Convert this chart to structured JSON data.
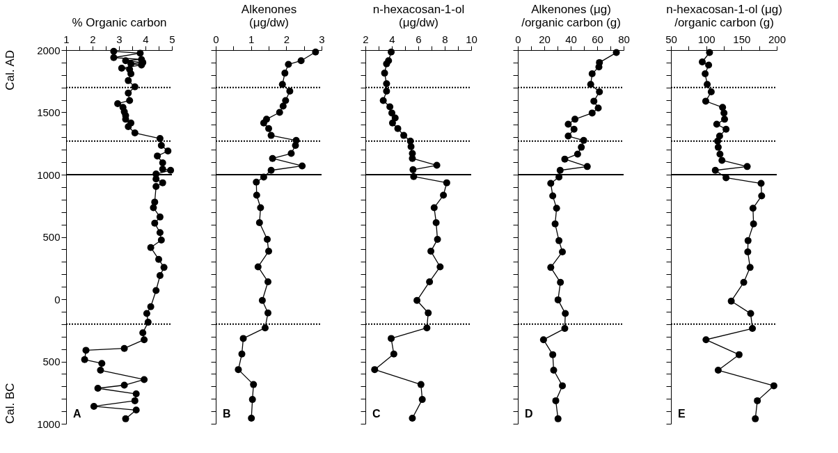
{
  "chart_data": [
    {
      "type": "line",
      "xlabel": "% Organic carbon",
      "ylabel": "Cal. AD",
      "annotations": [
        "A",
        "Cal. BC"
      ],
      "marker": "circle",
      "line_style": "solid",
      "series": [
        {
          "color": "#000000",
          "x": [
            2.8,
            3.8,
            2.8,
            3.85,
            3.25,
            3.9,
            3.45,
            3.85,
            3.1,
            3.4,
            3.45,
            3.35,
            3.6,
            3.35,
            3.4,
            2.95,
            3.15,
            3.2,
            3.25,
            3.25,
            3.45,
            3.35,
            3.6,
            4.55,
            4.6,
            4.85,
            4.45,
            4.65,
            4.65,
            4.95,
            4.4,
            4.4,
            4.65,
            4.4,
            4.35,
            4.3,
            4.55,
            4.35,
            4.55,
            4.6,
            4.2,
            4.5,
            4.7,
            4.55,
            4.4,
            4.2,
            4.05,
            4.1,
            3.9,
            3.95,
            3.2,
            1.75,
            1.7,
            2.35,
            2.3,
            3.95,
            3.2,
            2.2,
            3.65,
            3.6,
            2.05,
            3.65,
            3.25
          ],
          "values": [
            1990,
            1975,
            1940,
            1925,
            1915,
            1900,
            1890,
            1880,
            1855,
            1845,
            1810,
            1755,
            1705,
            1655,
            1595,
            1570,
            1540,
            1505,
            1475,
            1445,
            1415,
            1385,
            1335,
            1290,
            1235,
            1190,
            1150,
            1095,
            1045,
            1035,
            1005,
            965,
            935,
            905,
            780,
            735,
            660,
            610,
            535,
            475,
            415,
            320,
            255,
            190,
            70,
            -60,
            -115,
            -185,
            -270,
            -325,
            -395,
            -410,
            -485,
            -515,
            -570,
            -645,
            -690,
            -715,
            -760,
            -815,
            -860,
            -890,
            -960
          ]
        }
      ],
      "xlim": [
        1,
        5
      ],
      "xticks": [
        1,
        {
          "value": 1.5,
          "label": null
        },
        2,
        {
          "value": 2.5,
          "label": null
        },
        3,
        {
          "value": 3.5,
          "label": null
        },
        4,
        {
          "value": 4.5,
          "label": null
        },
        5
      ],
      "ylim": [
        -1000,
        2000
      ],
      "yticks": [
        {
          "value": -1000,
          "label": "1000"
        },
        {
          "value": -900,
          "label": null
        },
        {
          "value": -800,
          "label": null
        },
        {
          "value": -700,
          "label": null
        },
        {
          "value": -600,
          "label": null
        },
        {
          "value": -500,
          "label": "500"
        },
        {
          "value": -400,
          "label": null
        },
        {
          "value": -300,
          "label": null
        },
        {
          "value": -200,
          "label": null
        },
        {
          "value": -100,
          "label": null
        },
        0,
        {
          "value": 100,
          "label": null
        },
        {
          "value": 200,
          "label": null
        },
        {
          "value": 300,
          "label": null
        },
        {
          "value": 400,
          "label": null
        },
        500,
        {
          "value": 600,
          "label": null
        },
        {
          "value": 700,
          "label": null
        },
        {
          "value": 800,
          "label": null
        },
        {
          "value": 900,
          "label": null
        },
        1000,
        {
          "value": 1100,
          "label": null
        },
        {
          "value": 1200,
          "label": null
        },
        {
          "value": 1300,
          "label": null
        },
        {
          "value": 1400,
          "label": null
        },
        1500,
        {
          "value": 1600,
          "label": null
        },
        {
          "value": 1700,
          "label": null
        },
        {
          "value": 1800,
          "label": null
        },
        {
          "value": 1900,
          "label": null
        },
        2000
      ],
      "ref_lines": [
        {
          "axis": "y",
          "value": 1700,
          "line_style": "dotted"
        },
        {
          "axis": "y",
          "value": 1270,
          "line_style": "dotted"
        },
        {
          "axis": "y",
          "value": 1000,
          "line_style": "solid"
        },
        {
          "axis": "y",
          "value": -200,
          "line_style": "dotted"
        }
      ]
    },
    {
      "type": "line",
      "xlabel": "Alkenones\n(μg/dw)",
      "annotations": [
        "B"
      ],
      "marker": "circle",
      "line_style": "solid",
      "tick_labels": "x",
      "series": [
        {
          "color": "#000000",
          "x": [
            2.83,
            2.42,
            2.06,
            1.96,
            1.89,
            2.1,
            1.98,
            1.91,
            1.81,
            1.44,
            1.36,
            1.5,
            1.57,
            2.28,
            2.26,
            2.14,
            1.61,
            2.45,
            1.57,
            1.36,
            1.15,
            1.16,
            1.27,
            1.24,
            1.46,
            1.5,
            1.2,
            1.48,
            1.32,
            1.48,
            1.4,
            0.78,
            0.74,
            0.64,
            1.07,
            1.04,
            1.01
          ],
          "values": [
            1985,
            1915,
            1885,
            1815,
            1725,
            1670,
            1595,
            1550,
            1500,
            1445,
            1415,
            1370,
            1315,
            1275,
            1235,
            1170,
            1130,
            1070,
            1035,
            980,
            940,
            835,
            735,
            615,
            480,
            385,
            260,
            140,
            -10,
            -110,
            -230,
            -315,
            -440,
            -565,
            -685,
            -805,
            -955
          ]
        }
      ],
      "xlim": [
        0,
        3
      ],
      "xticks": [
        0,
        {
          "value": 0.5,
          "label": null
        },
        1,
        {
          "value": 1.5,
          "label": null
        },
        2,
        {
          "value": 2.5,
          "label": null
        },
        3
      ],
      "ylim": [
        -1000,
        2000
      ],
      "yticks": [
        {
          "value": -1000,
          "label": null
        },
        {
          "value": -900,
          "label": null
        },
        {
          "value": -800,
          "label": null
        },
        {
          "value": -700,
          "label": null
        },
        {
          "value": -600,
          "label": null
        },
        {
          "value": -500,
          "label": null
        },
        {
          "value": -400,
          "label": null
        },
        {
          "value": -300,
          "label": null
        },
        {
          "value": -200,
          "label": null
        },
        {
          "value": -100,
          "label": null
        },
        {
          "value": 0,
          "label": null
        },
        {
          "value": 100,
          "label": null
        },
        {
          "value": 200,
          "label": null
        },
        {
          "value": 300,
          "label": null
        },
        {
          "value": 400,
          "label": null
        },
        {
          "value": 500,
          "label": null
        },
        {
          "value": 600,
          "label": null
        },
        {
          "value": 700,
          "label": null
        },
        {
          "value": 800,
          "label": null
        },
        {
          "value": 900,
          "label": null
        },
        {
          "value": 1000,
          "label": null
        },
        {
          "value": 1100,
          "label": null
        },
        {
          "value": 1200,
          "label": null
        },
        {
          "value": 1300,
          "label": null
        },
        {
          "value": 1400,
          "label": null
        },
        {
          "value": 1500,
          "label": null
        },
        {
          "value": 1600,
          "label": null
        },
        {
          "value": 1700,
          "label": null
        },
        {
          "value": 1800,
          "label": null
        },
        {
          "value": 1900,
          "label": null
        },
        {
          "value": 2000,
          "label": null
        }
      ],
      "ref_lines": [
        {
          "axis": "y",
          "value": 1700,
          "line_style": "dotted"
        },
        {
          "axis": "y",
          "value": 1270,
          "line_style": "dotted"
        },
        {
          "axis": "y",
          "value": 1000,
          "line_style": "solid"
        },
        {
          "axis": "y",
          "value": -200,
          "line_style": "dotted"
        }
      ]
    },
    {
      "type": "line",
      "xlabel": "n-hexacosan-1-ol\n(μg/dw)",
      "annotations": [
        "C"
      ],
      "marker": "circle",
      "line_style": "solid",
      "tick_labels": "x",
      "series": [
        {
          "color": "#000000",
          "x": [
            3.95,
            3.75,
            3.6,
            3.45,
            3.6,
            3.6,
            3.35,
            3.85,
            4.0,
            4.25,
            4.05,
            4.45,
            4.9,
            5.4,
            5.45,
            5.55,
            5.55,
            7.4,
            5.6,
            5.65,
            8.15,
            7.9,
            7.2,
            7.35,
            7.45,
            6.95,
            7.65,
            6.85,
            5.9,
            6.75,
            6.65,
            3.95,
            4.15,
            2.7,
            6.2,
            6.3,
            5.55
          ],
          "values": [
            1985,
            1915,
            1890,
            1815,
            1730,
            1670,
            1595,
            1545,
            1495,
            1455,
            1415,
            1370,
            1315,
            1270,
            1225,
            1170,
            1130,
            1075,
            1040,
            985,
            935,
            835,
            735,
            615,
            480,
            385,
            260,
            140,
            -10,
            -110,
            -230,
            -315,
            -440,
            -565,
            -685,
            -805,
            -955
          ]
        }
      ],
      "xlim": [
        2,
        10
      ],
      "xticks": [
        2,
        {
          "value": 3,
          "label": null
        },
        4,
        {
          "value": 5,
          "label": null
        },
        6,
        {
          "value": 7,
          "label": null
        },
        8,
        {
          "value": 9,
          "label": null
        },
        10
      ],
      "ylim": [
        -1000,
        2000
      ],
      "yticks": [
        {
          "value": -1000,
          "label": null
        },
        {
          "value": -900,
          "label": null
        },
        {
          "value": -800,
          "label": null
        },
        {
          "value": -700,
          "label": null
        },
        {
          "value": -600,
          "label": null
        },
        {
          "value": -500,
          "label": null
        },
        {
          "value": -400,
          "label": null
        },
        {
          "value": -300,
          "label": null
        },
        {
          "value": -200,
          "label": null
        },
        {
          "value": -100,
          "label": null
        },
        {
          "value": 0,
          "label": null
        },
        {
          "value": 100,
          "label": null
        },
        {
          "value": 200,
          "label": null
        },
        {
          "value": 300,
          "label": null
        },
        {
          "value": 400,
          "label": null
        },
        {
          "value": 500,
          "label": null
        },
        {
          "value": 600,
          "label": null
        },
        {
          "value": 700,
          "label": null
        },
        {
          "value": 800,
          "label": null
        },
        {
          "value": 900,
          "label": null
        },
        {
          "value": 1000,
          "label": null
        },
        {
          "value": 1100,
          "label": null
        },
        {
          "value": 1200,
          "label": null
        },
        {
          "value": 1300,
          "label": null
        },
        {
          "value": 1400,
          "label": null
        },
        {
          "value": 1500,
          "label": null
        },
        {
          "value": 1600,
          "label": null
        },
        {
          "value": 1700,
          "label": null
        },
        {
          "value": 1800,
          "label": null
        },
        {
          "value": 1900,
          "label": null
        },
        {
          "value": 2000,
          "label": null
        }
      ],
      "ref_lines": [
        {
          "axis": "y",
          "value": 1700,
          "line_style": "dotted"
        },
        {
          "axis": "y",
          "value": 1270,
          "line_style": "dotted"
        },
        {
          "axis": "y",
          "value": 1000,
          "line_style": "solid"
        },
        {
          "axis": "y",
          "value": -200,
          "line_style": "dotted"
        }
      ]
    },
    {
      "type": "line",
      "xlabel": "Alkenones (μg)\n/organic carbon (g)",
      "annotations": [
        "D"
      ],
      "marker": "circle",
      "line_style": "solid",
      "tick_labels": "x",
      "series": [
        {
          "color": "#000000",
          "x": [
            74.5,
            61.7,
            61.3,
            56.2,
            55.1,
            61.7,
            57.5,
            60.8,
            56.2,
            43.2,
            38.1,
            42.5,
            38.1,
            49.8,
            48.0,
            45.2,
            35.5,
            52.5,
            32.0,
            31.1,
            24.9,
            26.4,
            29.3,
            28.2,
            31.1,
            33.7,
            24.9,
            32.2,
            30.4,
            35.9,
            35.5,
            19.4,
            26.4,
            27.1,
            33.7,
            28.7,
            30.4
          ],
          "values": [
            1980,
            1900,
            1865,
            1810,
            1725,
            1665,
            1590,
            1535,
            1495,
            1445,
            1405,
            1365,
            1310,
            1275,
            1220,
            1165,
            1125,
            1065,
            1035,
            980,
            930,
            830,
            730,
            605,
            470,
            380,
            255,
            135,
            -5,
            -115,
            -235,
            -325,
            -445,
            -570,
            -695,
            -815,
            -960
          ]
        }
      ],
      "xlim": [
        0,
        80
      ],
      "xticks": [
        0,
        {
          "value": 10,
          "label": null
        },
        20,
        {
          "value": 30,
          "label": null
        },
        40,
        {
          "value": 50,
          "label": null
        },
        60,
        {
          "value": 70,
          "label": null
        },
        80
      ],
      "ylim": [
        -1000,
        2000
      ],
      "yticks": [
        {
          "value": -1000,
          "label": null
        },
        {
          "value": -900,
          "label": null
        },
        {
          "value": -800,
          "label": null
        },
        {
          "value": -700,
          "label": null
        },
        {
          "value": -600,
          "label": null
        },
        {
          "value": -500,
          "label": null
        },
        {
          "value": -400,
          "label": null
        },
        {
          "value": -300,
          "label": null
        },
        {
          "value": -200,
          "label": null
        },
        {
          "value": -100,
          "label": null
        },
        {
          "value": 0,
          "label": null
        },
        {
          "value": 100,
          "label": null
        },
        {
          "value": 200,
          "label": null
        },
        {
          "value": 300,
          "label": null
        },
        {
          "value": 400,
          "label": null
        },
        {
          "value": 500,
          "label": null
        },
        {
          "value": 600,
          "label": null
        },
        {
          "value": 700,
          "label": null
        },
        {
          "value": 800,
          "label": null
        },
        {
          "value": 900,
          "label": null
        },
        {
          "value": 1000,
          "label": null
        },
        {
          "value": 1100,
          "label": null
        },
        {
          "value": 1200,
          "label": null
        },
        {
          "value": 1300,
          "label": null
        },
        {
          "value": 1400,
          "label": null
        },
        {
          "value": 1500,
          "label": null
        },
        {
          "value": 1600,
          "label": null
        },
        {
          "value": 1700,
          "label": null
        },
        {
          "value": 1800,
          "label": null
        },
        {
          "value": 1900,
          "label": null
        },
        {
          "value": 2000,
          "label": null
        }
      ],
      "ref_lines": [
        {
          "axis": "y",
          "value": 1700,
          "line_style": "dotted"
        },
        {
          "axis": "y",
          "value": 1270,
          "line_style": "dotted"
        },
        {
          "axis": "y",
          "value": 1000,
          "line_style": "solid"
        },
        {
          "axis": "y",
          "value": -200,
          "line_style": "dotted"
        }
      ]
    },
    {
      "type": "line",
      "xlabel": "n-hexacosan-1-ol (μg)\n/organic carbon (g)",
      "annotations": [
        "E"
      ],
      "marker": "circle",
      "line_style": "solid",
      "tick_labels": "x",
      "series": [
        {
          "color": "#000000",
          "x": [
            104.7,
            94.4,
            103.4,
            98.5,
            101.4,
            107.1,
            99.3,
            123.2,
            125.2,
            126.0,
            114.9,
            128.1,
            119.0,
            116.2,
            117.0,
            119.5,
            122.3,
            158.1,
            112.9,
            128.1,
            177.8,
            178.6,
            166.3,
            167.1,
            159.3,
            158.9,
            162.2,
            153.2,
            135.5,
            163.0,
            165.5,
            99.7,
            146.6,
            117.0,
            195.9,
            172.5,
            169.6
          ],
          "values": [
            1980,
            1905,
            1880,
            1810,
            1725,
            1665,
            1590,
            1540,
            1495,
            1445,
            1405,
            1365,
            1310,
            1270,
            1220,
            1165,
            1115,
            1065,
            1035,
            975,
            930,
            830,
            730,
            605,
            470,
            380,
            255,
            135,
            -15,
            -115,
            -235,
            -325,
            -445,
            -570,
            -695,
            -815,
            -960
          ]
        }
      ],
      "xlim": [
        50,
        200
      ],
      "xticks": [
        50,
        {
          "value": 75,
          "label": null
        },
        100,
        {
          "value": 125,
          "label": null
        },
        150,
        {
          "value": 175,
          "label": null
        },
        200
      ],
      "ylim": [
        -1000,
        2000
      ],
      "yticks": [
        {
          "value": -1000,
          "label": null
        },
        {
          "value": -900,
          "label": null
        },
        {
          "value": -800,
          "label": null
        },
        {
          "value": -700,
          "label": null
        },
        {
          "value": -600,
          "label": null
        },
        {
          "value": -500,
          "label": null
        },
        {
          "value": -400,
          "label": null
        },
        {
          "value": -300,
          "label": null
        },
        {
          "value": -200,
          "label": null
        },
        {
          "value": -100,
          "label": null
        },
        {
          "value": 0,
          "label": null
        },
        {
          "value": 100,
          "label": null
        },
        {
          "value": 200,
          "label": null
        },
        {
          "value": 300,
          "label": null
        },
        {
          "value": 400,
          "label": null
        },
        {
          "value": 500,
          "label": null
        },
        {
          "value": 600,
          "label": null
        },
        {
          "value": 700,
          "label": null
        },
        {
          "value": 800,
          "label": null
        },
        {
          "value": 900,
          "label": null
        },
        {
          "value": 1000,
          "label": null
        },
        {
          "value": 1100,
          "label": null
        },
        {
          "value": 1200,
          "label": null
        },
        {
          "value": 1300,
          "label": null
        },
        {
          "value": 1400,
          "label": null
        },
        {
          "value": 1500,
          "label": null
        },
        {
          "value": 1600,
          "label": null
        },
        {
          "value": 1700,
          "label": null
        },
        {
          "value": 1800,
          "label": null
        },
        {
          "value": 1900,
          "label": null
        },
        {
          "value": 2000,
          "label": null
        }
      ],
      "ref_lines": [
        {
          "axis": "y",
          "value": 1700,
          "line_style": "dotted"
        },
        {
          "axis": "y",
          "value": 1270,
          "line_style": "dotted"
        },
        {
          "axis": "y",
          "value": 1000,
          "line_style": "solid"
        },
        {
          "axis": "y",
          "value": -200,
          "line_style": "dotted"
        }
      ]
    }
  ]
}
